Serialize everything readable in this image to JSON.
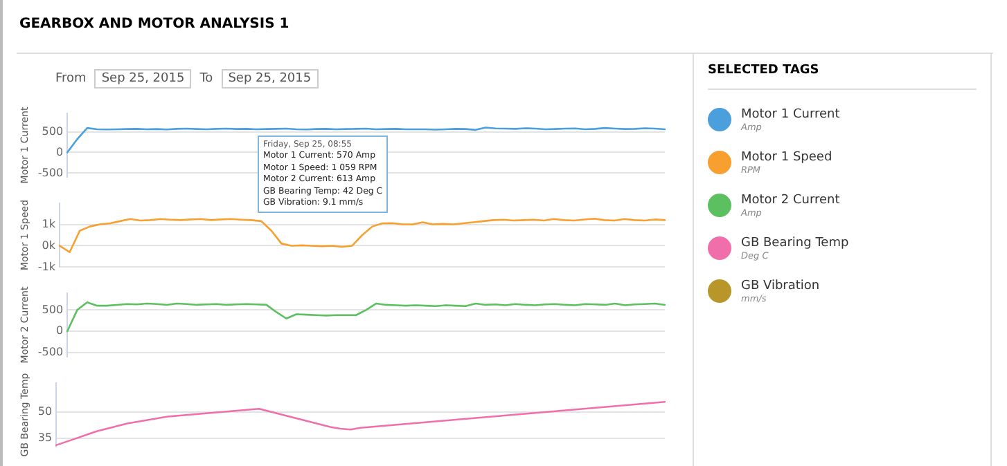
{
  "chart_data": [
    {
      "type": "line",
      "title": "GEARBOX AND MOTOR ANALYSIS 1",
      "ylabel": "Motor 1 Current",
      "categories": [
        null,
        null,
        null,
        null,
        null,
        null,
        null,
        null,
        null,
        null,
        null,
        null,
        null,
        null,
        null,
        null,
        null,
        null,
        null,
        null,
        null,
        null,
        null,
        null,
        null,
        null,
        null,
        null,
        null,
        null,
        null,
        null,
        null,
        null,
        null,
        null,
        null,
        null,
        null,
        null,
        null,
        null,
        null,
        null,
        null,
        null,
        null,
        null,
        null,
        null,
        null,
        null,
        null,
        null,
        null,
        null,
        null,
        null,
        null,
        null,
        null
      ],
      "ylim": [
        -600,
        950
      ],
      "yticks": [
        -500,
        0,
        500
      ],
      "grid": "y",
      "marker": "none",
      "series": [
        {
          "color": "#4a9fdc",
          "values": [
            0,
            320,
            590,
            560,
            555,
            560,
            565,
            570,
            560,
            565,
            555,
            570,
            575,
            565,
            560,
            570,
            575,
            565,
            570,
            560,
            565,
            570,
            575,
            560,
            555,
            565,
            570,
            560,
            565,
            570,
            575,
            560,
            565,
            570,
            560,
            560,
            560,
            550,
            560,
            570,
            565,
            545,
            600,
            580,
            575,
            570,
            585,
            575,
            560,
            565,
            575,
            580,
            560,
            570,
            590,
            575,
            565,
            570,
            585,
            575,
            560
          ]
        }
      ],
      "annotations": [
        "From",
        "Sep 25, 2015",
        "To",
        "Sep 25, 2015",
        "Friday, Sep 25, 08:55",
        "Motor 1 Current: 570 Amp",
        "Motor 1 Speed: 1 059 RPM",
        "Motor 2 Current: 613 Amp",
        "GB Bearing Temp: 42 Deg C",
        "GB Vibration: 9.1 mm/s"
      ]
    },
    {
      "type": "line",
      "ylabel": "Motor 1 Speed",
      "categories": [
        null,
        null,
        null,
        null,
        null,
        null,
        null,
        null,
        null,
        null,
        null,
        null,
        null,
        null,
        null,
        null,
        null,
        null,
        null,
        null,
        null,
        null,
        null,
        null,
        null,
        null,
        null,
        null,
        null,
        null,
        null,
        null,
        null,
        null,
        null,
        null,
        null,
        null,
        null,
        null,
        null,
        null,
        null,
        null,
        null,
        null,
        null,
        null,
        null,
        null,
        null,
        null,
        null,
        null,
        null,
        null,
        null,
        null,
        null,
        null,
        null
      ],
      "ylim": [
        -1000,
        2000
      ],
      "yticks": [
        {
          "value": -1000,
          "label": "-1k"
        },
        {
          "value": 0,
          "label": "0k"
        },
        {
          "value": 1000,
          "label": "1k"
        }
      ],
      "grid": "y",
      "marker": "none",
      "series": [
        {
          "color": "#f7a030",
          "values": [
            0,
            -300,
            700,
            900,
            1000,
            1050,
            1150,
            1250,
            1180,
            1200,
            1250,
            1220,
            1200,
            1230,
            1250,
            1200,
            1230,
            1250,
            1220,
            1200,
            1150,
            700,
            100,
            0,
            20,
            0,
            -20,
            0,
            -50,
            0,
            500,
            900,
            1050,
            1060,
            1000,
            1000,
            1100,
            1000,
            1020,
            1000,
            1050,
            1100,
            1150,
            1200,
            1220,
            1180,
            1200,
            1220,
            1180,
            1250,
            1200,
            1180,
            1230,
            1270,
            1200,
            1180,
            1250,
            1200,
            1180,
            1230,
            1200
          ]
        }
      ]
    },
    {
      "type": "line",
      "ylabel": "Motor 2 Current",
      "categories": [
        null,
        null,
        null,
        null,
        null,
        null,
        null,
        null,
        null,
        null,
        null,
        null,
        null,
        null,
        null,
        null,
        null,
        null,
        null,
        null,
        null,
        null,
        null,
        null,
        null,
        null,
        null,
        null,
        null,
        null,
        null,
        null,
        null,
        null,
        null,
        null,
        null,
        null,
        null,
        null,
        null,
        null,
        null,
        null,
        null,
        null,
        null,
        null,
        null,
        null,
        null,
        null,
        null,
        null,
        null,
        null,
        null,
        null,
        null,
        null,
        null
      ],
      "ylim": [
        -600,
        900
      ],
      "yticks": [
        -500,
        0,
        500
      ],
      "grid": "y",
      "marker": "none",
      "series": [
        {
          "color": "#5cbf60",
          "values": [
            0,
            500,
            680,
            600,
            600,
            620,
            640,
            630,
            650,
            640,
            620,
            650,
            640,
            620,
            630,
            640,
            620,
            630,
            640,
            630,
            620,
            450,
            300,
            400,
            390,
            380,
            370,
            380,
            380,
            380,
            500,
            650,
            620,
            610,
            600,
            610,
            600,
            590,
            610,
            600,
            590,
            650,
            620,
            630,
            610,
            640,
            620,
            610,
            630,
            640,
            620,
            610,
            640,
            630,
            620,
            650,
            610,
            630,
            640,
            650,
            620
          ]
        }
      ]
    },
    {
      "type": "line",
      "ylabel": "GB Bearing Temp",
      "categories": [
        null,
        null,
        null,
        null,
        null,
        null,
        null,
        null,
        null,
        null,
        null,
        null,
        null,
        null,
        null,
        null,
        null,
        null,
        null,
        null,
        null,
        null,
        null,
        null,
        null,
        null,
        null,
        null,
        null,
        null,
        null,
        null,
        null,
        null,
        null,
        null,
        null,
        null,
        null,
        null,
        null,
        null,
        null,
        null,
        null,
        null,
        null,
        null,
        null,
        null,
        null,
        null,
        null,
        null,
        null,
        null,
        null,
        null,
        null,
        null,
        null
      ],
      "ylim": [
        30,
        67
      ],
      "yticks": [
        35,
        50
      ],
      "grid": "y",
      "marker": "none",
      "series": [
        {
          "color": "#f06ea9",
          "values": [
            31,
            33,
            35,
            37,
            39,
            40.5,
            42,
            43.5,
            44.5,
            45.5,
            46.5,
            47.5,
            48,
            48.5,
            49,
            49.5,
            50,
            50.5,
            51,
            51.5,
            52,
            50.5,
            49,
            47.5,
            46,
            44.5,
            43,
            41.5,
            40.5,
            40,
            41,
            41.5,
            42,
            42.5,
            43,
            43.5,
            44,
            44.5,
            45,
            45.5,
            46,
            46.5,
            47,
            47.5,
            48,
            48.5,
            49,
            49.5,
            50,
            50.5,
            51,
            51.5,
            52,
            52.5,
            53,
            53.5,
            54,
            54.5,
            55,
            55.5,
            56
          ]
        }
      ]
    },
    {
      "type": "other",
      "title": "SELECTED TAGS",
      "categories": [
        "Motor 1 Current",
        "Motor 1 Speed",
        "Motor 2 Current",
        "GB Bearing Temp",
        "GB Vibration"
      ],
      "colors": [
        "#4a9fdc",
        "#f7a030",
        "#5cbf60",
        "#f06ea9",
        "#b8962a"
      ],
      "annotations": [
        "Amp",
        "RPM",
        "Amp",
        "Deg C",
        "mm/s"
      ]
    }
  ]
}
